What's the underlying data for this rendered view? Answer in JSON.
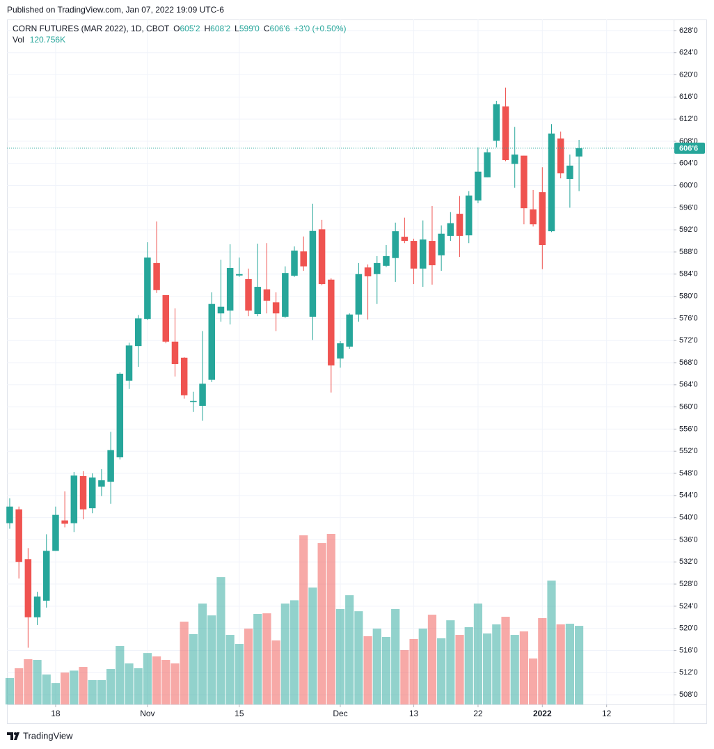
{
  "header": {
    "published": "Published on TradingView.com, Jan 07, 2022 19:09 UTC-6"
  },
  "footer": {
    "brand": "TradingView"
  },
  "chart_data": {
    "type": "candlestick",
    "title": "CORN FUTURES (MAR 2022), 1D, CBOT",
    "ohlc_legend": [
      [
        "O",
        "605'2"
      ],
      [
        "H",
        "608'2"
      ],
      [
        "L",
        "599'0"
      ],
      [
        "C",
        "606'6"
      ],
      [
        "",
        "+3'0 (+0.50%)"
      ]
    ],
    "up_color": "#26a69a",
    "down_color": "#ef5350",
    "grid": true,
    "xlim": [
      -0.3,
      72.3
    ],
    "xticks": [
      {
        "value": 5,
        "label": "18"
      },
      {
        "value": 15,
        "label": "Nov"
      },
      {
        "value": 25,
        "label": "15"
      },
      {
        "value": 36,
        "label": "Dec"
      },
      {
        "value": 44,
        "label": "13"
      },
      {
        "value": 51,
        "label": "22"
      },
      {
        "value": 58,
        "label": "2022"
      },
      {
        "value": 65,
        "label": "12"
      }
    ],
    "ylim": [
      506.25,
      630
    ],
    "yticks": [
      {
        "value": 508,
        "label": "508'0"
      },
      {
        "value": 512,
        "label": "512'0"
      },
      {
        "value": 516,
        "label": "516'0"
      },
      {
        "value": 520,
        "label": "520'0"
      },
      {
        "value": 524,
        "label": "524'0"
      },
      {
        "value": 528,
        "label": "528'0"
      },
      {
        "value": 532,
        "label": "532'0"
      },
      {
        "value": 536,
        "label": "536'0"
      },
      {
        "value": 540,
        "label": "540'0"
      },
      {
        "value": 544,
        "label": "544'0"
      },
      {
        "value": 548,
        "label": "548'0"
      },
      {
        "value": 552,
        "label": "552'0"
      },
      {
        "value": 556,
        "label": "556'0"
      },
      {
        "value": 560,
        "label": "560'0"
      },
      {
        "value": 564,
        "label": "564'0"
      },
      {
        "value": 568,
        "label": "568'0"
      },
      {
        "value": 572,
        "label": "572'0"
      },
      {
        "value": 576,
        "label": "576'0"
      },
      {
        "value": 580,
        "label": "580'0"
      },
      {
        "value": 584,
        "label": "584'0"
      },
      {
        "value": 588,
        "label": "588'0"
      },
      {
        "value": 592,
        "label": "592'0"
      },
      {
        "value": 596,
        "label": "596'0"
      },
      {
        "value": 600,
        "label": "600'0"
      },
      {
        "value": 604,
        "label": "604'0"
      },
      {
        "value": 608,
        "label": "608'0"
      },
      {
        "value": 612,
        "label": "612'0"
      },
      {
        "value": 616,
        "label": "616'0"
      },
      {
        "value": 620,
        "label": "620'0"
      },
      {
        "value": 624,
        "label": "624'0"
      },
      {
        "value": 628,
        "label": "628'0"
      }
    ],
    "last_price": {
      "value": 606.75,
      "label": "606'6"
    },
    "open": [
      539,
      541.5,
      532.5,
      522,
      525,
      534,
      539.5,
      539,
      547.5,
      541.7,
      545.6,
      546.5,
      550.9,
      564.75,
      571,
      575.9,
      586,
      580.2,
      571.8,
      568.9,
      560.9,
      560.2,
      564.9,
      576.9,
      577.4,
      583.75,
      583.1,
      576.8,
      581.25,
      578.9,
      576.3,
      583.7,
      588.1,
      576.3,
      592.1,
      583,
      568.75,
      570.9,
      576.7,
      585.2,
      584,
      585.5,
      586.9,
      590.75,
      590,
      585,
      590,
      587.4,
      590.9,
      594.9,
      591,
      597.3,
      601.5,
      608.1,
      614.3,
      603.9,
      605.4,
      595.7,
      598.8,
      591.75,
      608.5,
      601.2,
      605.25
    ],
    "high": [
      543.5,
      542,
      534.5,
      526.6,
      537,
      542,
      544.75,
      548.25,
      548.4,
      548,
      548.75,
      555.5,
      566.25,
      571.6,
      576.6,
      589.75,
      593.5,
      580.2,
      577.8,
      569,
      562.75,
      573.7,
      580.7,
      586.6,
      589.4,
      587,
      585,
      589.5,
      589.6,
      580.7,
      585.4,
      589,
      590.8,
      596.7,
      593.8,
      583.25,
      571.9,
      576.9,
      586,
      585.75,
      587.25,
      589.25,
      593.3,
      594.2,
      590.4,
      593.7,
      596.3,
      592.8,
      595.2,
      598.1,
      599,
      606.9,
      606.6,
      615.3,
      617.7,
      610.6,
      605.4,
      599.2,
      603.3,
      611.1,
      609.75,
      605.6,
      608.25
    ],
    "low": [
      538,
      529,
      516.5,
      520.6,
      523.75,
      534,
      538.25,
      537.4,
      539.7,
      540.8,
      543.9,
      542.5,
      550.5,
      563.25,
      567.25,
      575.7,
      580.6,
      571.5,
      565.5,
      561.5,
      559.1,
      557.5,
      564.5,
      575.4,
      574.9,
      583.5,
      576.4,
      576.4,
      576.9,
      573.7,
      576.1,
      583.5,
      584.6,
      572.1,
      582,
      562.6,
      567.1,
      570.5,
      575.4,
      575.8,
      578.6,
      585.25,
      582.6,
      589.6,
      582.2,
      581.7,
      582.1,
      584.6,
      590,
      587.1,
      589.6,
      596.8,
      601.5,
      606.9,
      604.4,
      599.6,
      593,
      592.6,
      584.9,
      591.6,
      601.3,
      596,
      599
    ],
    "close": [
      542,
      532,
      522,
      525.75,
      534,
      540.5,
      538.9,
      547.6,
      541.5,
      547.25,
      546.75,
      552.2,
      566,
      571.1,
      576,
      587,
      581.1,
      571.8,
      567.75,
      562.1,
      561.1,
      564.2,
      578.6,
      578.1,
      585.1,
      584,
      577.4,
      581.7,
      579.2,
      576.9,
      584.2,
      588.25,
      585.4,
      591.8,
      582.2,
      567.5,
      571.5,
      576.7,
      584,
      583.6,
      586,
      587.25,
      591.75,
      590,
      585,
      590.25,
      585.6,
      591.3,
      593.2,
      590.9,
      598.2,
      602.5,
      606,
      614.7,
      604.6,
      605.6,
      595.9,
      593,
      589.25,
      609.4,
      602.2,
      603.6,
      606.75
    ],
    "volume": {
      "name": "Vol",
      "values": [
        40.6,
        55.6,
        69.5,
        68.4,
        46,
        33,
        49,
        52,
        57.7,
        37.4,
        37.4,
        54.5,
        89.8,
        63,
        55.6,
        79,
        73.8,
        68.4,
        63,
        127.2,
        108,
        155,
        136.8,
        195.6,
        106.9,
        93,
        116.5,
        139,
        140,
        98.3,
        155,
        160,
        259.8,
        179.6,
        248,
        262,
        146.5,
        167.8,
        143.2,
        104.8,
        116.5,
        103.7,
        146.5,
        83.4,
        100.5,
        116.5,
        137.9,
        101.6,
        129.3,
        106.9,
        118.7,
        155,
        109,
        123,
        134.7,
        106.9,
        112.2,
        70.6,
        132.6,
        190.3,
        123,
        124,
        120.756
      ],
      "value_labels": [
        null,
        null,
        null,
        null,
        null,
        null,
        null,
        null,
        null,
        null,
        null,
        null,
        null,
        null,
        null,
        null,
        null,
        null,
        null,
        null,
        null,
        null,
        null,
        null,
        null,
        null,
        null,
        null,
        null,
        null,
        null,
        null,
        null,
        null,
        null,
        null,
        null,
        null,
        null,
        null,
        null,
        null,
        null,
        null,
        null,
        null,
        null,
        null,
        null,
        null,
        null,
        null,
        null,
        null,
        null,
        null,
        null,
        null,
        null,
        null,
        null,
        null,
        "120.756K"
      ]
    }
  }
}
